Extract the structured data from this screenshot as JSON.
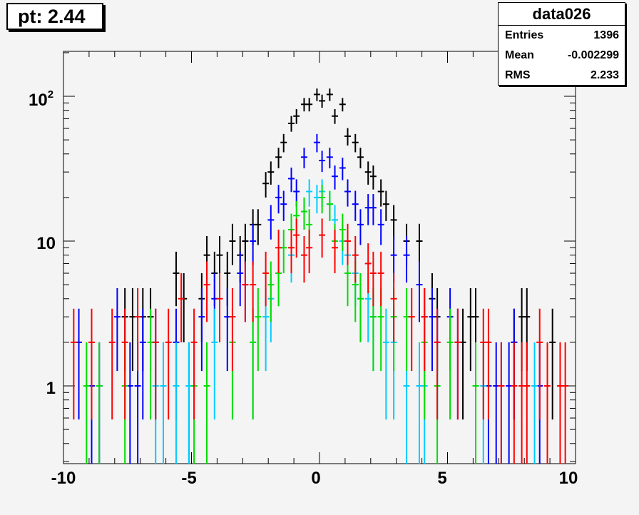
{
  "title": "pt: 2.44",
  "stats": {
    "name": "data026",
    "rows": [
      {
        "key": "Entries",
        "value": "1396"
      },
      {
        "key": "Mean",
        "value": "-0.002299"
      },
      {
        "key": "RMS",
        "value": "2.233"
      }
    ]
  },
  "chart_data": {
    "type": "scatter",
    "title": "pt: 2.44",
    "xlim": [
      -10,
      10
    ],
    "ylim": [
      0.3,
      200
    ],
    "yscale": "log",
    "xticks": [
      "-10",
      "-5",
      "0",
      "5",
      "10"
    ],
    "yticks": [
      "1",
      "10",
      "10^2"
    ],
    "bin_width": 0.5,
    "series": [
      {
        "color": "#000000",
        "points": [
          [
            -7.6,
            3
          ],
          [
            -7.3,
            3
          ],
          [
            -6.9,
            3
          ],
          [
            -6.6,
            3
          ],
          [
            -5.6,
            6
          ],
          [
            -5.3,
            4
          ],
          [
            -4.6,
            4
          ],
          [
            -4.4,
            8
          ],
          [
            -4.1,
            6
          ],
          [
            -3.9,
            8
          ],
          [
            -3.6,
            6
          ],
          [
            -3.4,
            10
          ],
          [
            -3.1,
            8
          ],
          [
            -2.9,
            10
          ],
          [
            -2.6,
            13
          ],
          [
            -2.4,
            13
          ],
          [
            -2.1,
            25
          ],
          [
            -1.9,
            30
          ],
          [
            -1.6,
            38
          ],
          [
            -1.4,
            48
          ],
          [
            -1.1,
            65
          ],
          [
            -0.9,
            73
          ],
          [
            -0.6,
            88
          ],
          [
            -0.4,
            88
          ],
          [
            -0.1,
            103
          ],
          [
            0.1,
            93
          ],
          [
            0.4,
            103
          ],
          [
            0.6,
            73
          ],
          [
            0.9,
            88
          ],
          [
            1.1,
            53
          ],
          [
            1.4,
            48
          ],
          [
            1.6,
            38
          ],
          [
            1.9,
            30
          ],
          [
            2.1,
            28
          ],
          [
            2.4,
            22
          ],
          [
            2.6,
            18
          ],
          [
            2.9,
            14
          ],
          [
            3.4,
            10
          ],
          [
            3.9,
            10
          ],
          [
            4.4,
            4
          ],
          [
            4.6,
            3
          ],
          [
            5.6,
            2
          ],
          [
            5.9,
            3
          ],
          [
            6.1,
            3
          ],
          [
            7.6,
            2
          ],
          [
            7.9,
            3
          ],
          [
            8.1,
            3
          ],
          [
            9.1,
            2
          ]
        ]
      },
      {
        "color": "#0000ff",
        "points": [
          [
            -9.4,
            2
          ],
          [
            -8.9,
            1
          ],
          [
            -8.6,
            1
          ],
          [
            -7.9,
            3
          ],
          [
            -7.4,
            1
          ],
          [
            -7.1,
            1
          ],
          [
            -6.9,
            2
          ],
          [
            -6.4,
            2
          ],
          [
            -6.1,
            1
          ],
          [
            -5.6,
            2
          ],
          [
            -5.1,
            1
          ],
          [
            -4.6,
            3
          ],
          [
            -4.1,
            4
          ],
          [
            -3.6,
            3
          ],
          [
            -3.1,
            6
          ],
          [
            -2.9,
            5
          ],
          [
            -2.6,
            10
          ],
          [
            -1.9,
            14
          ],
          [
            -1.6,
            20
          ],
          [
            -1.4,
            18
          ],
          [
            -1.1,
            27
          ],
          [
            -0.9,
            22
          ],
          [
            -0.6,
            38
          ],
          [
            -0.1,
            48
          ],
          [
            0.1,
            36
          ],
          [
            0.4,
            38
          ],
          [
            0.6,
            28
          ],
          [
            0.9,
            32
          ],
          [
            1.1,
            22
          ],
          [
            1.4,
            18
          ],
          [
            1.6,
            13
          ],
          [
            1.9,
            17
          ],
          [
            2.1,
            17
          ],
          [
            2.4,
            13
          ],
          [
            2.9,
            8
          ],
          [
            3.4,
            8
          ],
          [
            3.9,
            5
          ],
          [
            4.1,
            3
          ],
          [
            4.4,
            3
          ],
          [
            4.6,
            2
          ],
          [
            5.1,
            3
          ],
          [
            5.4,
            2
          ],
          [
            6.6,
            1
          ],
          [
            6.9,
            1
          ],
          [
            7.1,
            1
          ],
          [
            7.4,
            1
          ],
          [
            7.6,
            2
          ],
          [
            8.6,
            1
          ]
        ]
      },
      {
        "color": "#00ccff",
        "points": [
          [
            -6.4,
            1
          ],
          [
            -6.1,
            1
          ],
          [
            -5.6,
            1
          ],
          [
            -5.1,
            1
          ],
          [
            -4.1,
            2
          ],
          [
            -3.4,
            2
          ],
          [
            -2.6,
            2
          ],
          [
            -2.1,
            3
          ],
          [
            -1.9,
            4
          ],
          [
            -1.6,
            6
          ],
          [
            -1.1,
            8
          ],
          [
            -0.6,
            16
          ],
          [
            -0.4,
            22
          ],
          [
            -0.1,
            20
          ],
          [
            0.1,
            22
          ],
          [
            0.4,
            18
          ],
          [
            0.6,
            14
          ],
          [
            0.9,
            10
          ],
          [
            1.1,
            8
          ],
          [
            1.4,
            6
          ],
          [
            1.6,
            4
          ],
          [
            1.9,
            4
          ],
          [
            2.1,
            3
          ],
          [
            2.6,
            2
          ],
          [
            2.9,
            2
          ],
          [
            3.4,
            1
          ],
          [
            3.9,
            1
          ],
          [
            4.1,
            1
          ],
          [
            6.1,
            1
          ],
          [
            6.4,
            1
          ],
          [
            8.4,
            1
          ],
          [
            8.9,
            1
          ]
        ]
      },
      {
        "color": "#00dd00",
        "points": [
          [
            -9.1,
            1
          ],
          [
            -8.6,
            1
          ],
          [
            -7.6,
            1
          ],
          [
            -6.6,
            2
          ],
          [
            -4.9,
            1
          ],
          [
            -4.4,
            1
          ],
          [
            -3.4,
            2
          ],
          [
            -2.6,
            2
          ],
          [
            -2.4,
            3
          ],
          [
            -1.9,
            5
          ],
          [
            -1.6,
            6
          ],
          [
            -1.4,
            9
          ],
          [
            -1.1,
            12
          ],
          [
            -0.9,
            15
          ],
          [
            -0.6,
            16
          ],
          [
            -0.4,
            13
          ],
          [
            0.1,
            20
          ],
          [
            0.4,
            18
          ],
          [
            0.6,
            10
          ],
          [
            0.9,
            12
          ],
          [
            1.1,
            6
          ],
          [
            1.4,
            5
          ],
          [
            1.6,
            4
          ],
          [
            2.1,
            3
          ],
          [
            2.4,
            3
          ],
          [
            2.9,
            3
          ],
          [
            3.4,
            3
          ],
          [
            4.1,
            2
          ],
          [
            4.6,
            1
          ],
          [
            5.1,
            2
          ],
          [
            6.1,
            1
          ]
        ]
      },
      {
        "color": "#ff0000",
        "points": [
          [
            -9.6,
            2
          ],
          [
            -8.9,
            2
          ],
          [
            -8.1,
            2
          ],
          [
            -7.6,
            2
          ],
          [
            -7.1,
            3
          ],
          [
            -6.4,
            2
          ],
          [
            -5.9,
            2
          ],
          [
            -5.4,
            4
          ],
          [
            -4.9,
            2
          ],
          [
            -4.4,
            5
          ],
          [
            -3.9,
            4
          ],
          [
            -3.4,
            3
          ],
          [
            -2.9,
            5
          ],
          [
            -2.6,
            5
          ],
          [
            -2.1,
            6
          ],
          [
            -1.6,
            9
          ],
          [
            -1.1,
            9
          ],
          [
            -0.9,
            11
          ],
          [
            -0.6,
            8
          ],
          [
            -0.4,
            9
          ],
          [
            0.1,
            11
          ],
          [
            0.6,
            9
          ],
          [
            1.1,
            10
          ],
          [
            1.4,
            8
          ],
          [
            1.9,
            7
          ],
          [
            2.1,
            6
          ],
          [
            2.4,
            6
          ],
          [
            2.9,
            4
          ],
          [
            3.6,
            3
          ],
          [
            4.1,
            3
          ],
          [
            4.6,
            2
          ],
          [
            5.4,
            2
          ],
          [
            6.4,
            2
          ],
          [
            6.6,
            2
          ],
          [
            7.1,
            1
          ],
          [
            7.6,
            1
          ],
          [
            7.9,
            1
          ],
          [
            8.1,
            1
          ],
          [
            8.6,
            2
          ],
          [
            8.9,
            1
          ],
          [
            9.4,
            1
          ],
          [
            9.6,
            1
          ]
        ]
      }
    ]
  }
}
